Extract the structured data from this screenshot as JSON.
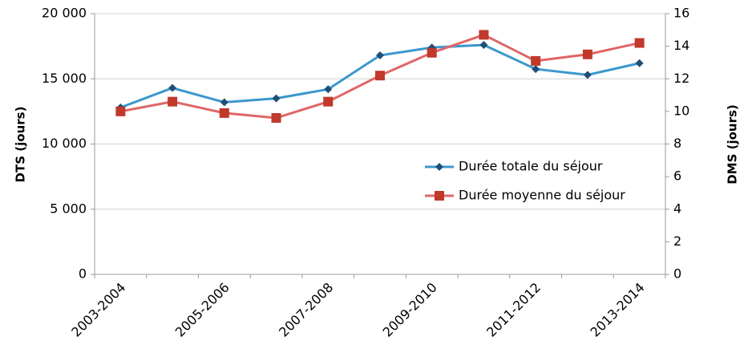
{
  "chart_data": {
    "type": "line",
    "categories": [
      "2003-2004",
      null,
      "2005-2006",
      null,
      "2007-2008",
      null,
      "2009-2010",
      null,
      "2011-2012",
      null,
      "2013-2014"
    ],
    "y_label": "DTS (jours)",
    "y2_label": "DMS (jours)",
    "ylim": [
      0,
      20000
    ],
    "yticks": [
      0,
      {
        "value": 5000,
        "label": "5 000"
      },
      {
        "value": 10000,
        "label": "10 000"
      },
      {
        "value": 15000,
        "label": "15 000"
      },
      {
        "value": 20000,
        "label": "20 000"
      }
    ],
    "y2lim": [
      0,
      16
    ],
    "y2ticks": [
      0,
      2,
      4,
      6,
      8,
      10,
      12,
      14,
      16
    ],
    "grid": true,
    "legend": "right",
    "series": [
      {
        "name": "Durée totale du séjour",
        "color": "#3a98cc",
        "marker_color": "#1f4e79",
        "marker": "diamond",
        "values": [
          12800,
          14300,
          13200,
          13500,
          14200,
          16800,
          17400,
          17600,
          15750,
          15300,
          16200
        ]
      },
      {
        "name": "Durée moyenne du séjour",
        "color": "#e06666",
        "marker_color": "#c0392b",
        "marker": "square",
        "axis": "y2",
        "values": [
          10.0,
          10.6,
          9.9,
          9.6,
          10.6,
          12.2,
          13.6,
          14.7,
          13.1,
          13.5,
          14.2
        ]
      }
    ]
  }
}
